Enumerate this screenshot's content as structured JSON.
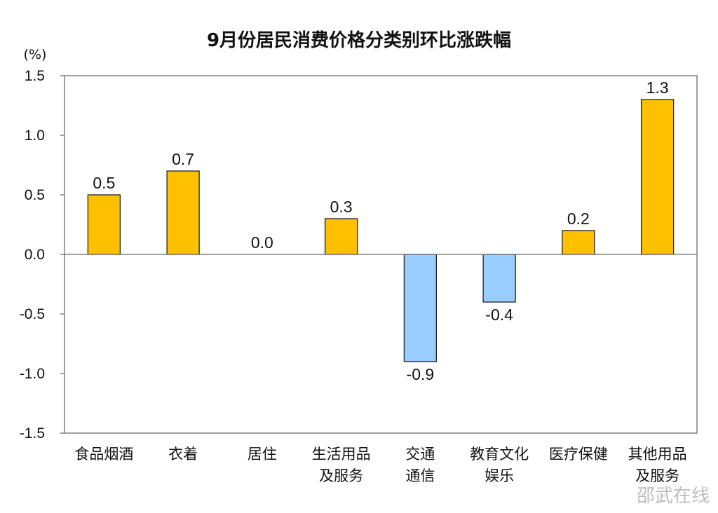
{
  "chart_data": {
    "type": "bar",
    "title": "9月份居民消费价格分类别环比涨跌幅",
    "unit_label": "(%)",
    "categories": [
      [
        "食品烟酒"
      ],
      [
        "衣着"
      ],
      [
        "居住"
      ],
      [
        "生活用品",
        "及服务"
      ],
      [
        "交通",
        "通信"
      ],
      [
        "教育文化",
        "娱乐"
      ],
      [
        "医疗保健"
      ],
      [
        "其他用品",
        "及服务"
      ]
    ],
    "values": [
      0.5,
      0.7,
      0.0,
      0.3,
      -0.9,
      -0.4,
      0.2,
      1.3
    ],
    "value_labels": [
      "0.5",
      "0.7",
      "0.0",
      "0.3",
      "-0.9",
      "-0.4",
      "0.2",
      "1.3"
    ],
    "ylim": [
      -1.5,
      1.5
    ],
    "yticks": [
      1.5,
      1.0,
      0.5,
      0.0,
      -0.5,
      -1.0,
      -1.5
    ],
    "ytick_labels": [
      "1.5",
      "1.0",
      "0.5",
      "0.0",
      "-0.5",
      "-1.0",
      "-1.5"
    ],
    "grid": false,
    "colors": {
      "positive": "#FFC000",
      "negative": "#99CCFF",
      "bar_edge": "#222222",
      "axis": "#808080"
    }
  },
  "watermark": "邵武在线"
}
